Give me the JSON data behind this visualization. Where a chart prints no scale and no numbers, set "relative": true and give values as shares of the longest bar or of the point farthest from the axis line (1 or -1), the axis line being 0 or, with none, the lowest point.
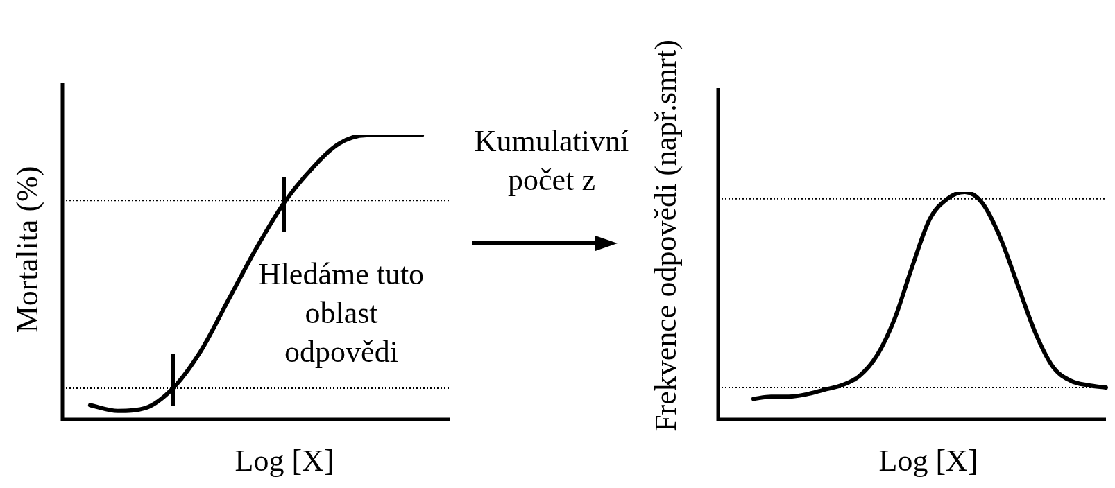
{
  "chart_data": [
    {
      "type": "line",
      "relative": true,
      "xlabel": "Log [X]",
      "ylabel": "Mortalita (%)",
      "color": "#000000",
      "categories": [
        null,
        null,
        null,
        null,
        null,
        null,
        null,
        null,
        null,
        null,
        null,
        null,
        null,
        null,
        null
      ],
      "values": [
        null,
        0.05,
        0.03,
        0.04,
        0.11,
        0.24,
        0.42,
        0.6,
        0.76,
        0.88,
        0.97,
        1,
        1,
        1,
        null
      ],
      "ref_lines": [
        {
          "axis": "y",
          "value": 0.11,
          "line_style": "dotted"
        },
        {
          "axis": "y",
          "value": 0.77,
          "line_style": "dotted"
        }
      ],
      "annotations": [
        "Kumulativní počet z",
        "Hledáme tuto oblast odpovědi"
      ]
    },
    {
      "type": "line",
      "relative": true,
      "xlabel": "Log [X]",
      "ylabel": "Frekvence odpovědi (např.smrt)",
      "color": "#000000",
      "categories": [
        null,
        null,
        null,
        null,
        null,
        null,
        null,
        null,
        null,
        null,
        null,
        null,
        null,
        null,
        null,
        null,
        null,
        null,
        null,
        null,
        null,
        null,
        null
      ],
      "values": [
        null,
        null,
        0.09,
        0.1,
        0.1,
        0.11,
        0.13,
        0.15,
        0.19,
        0.28,
        0.44,
        0.67,
        0.88,
        0.97,
        1,
        0.95,
        0.8,
        0.59,
        0.38,
        0.23,
        0.17,
        0.15,
        0.14
      ],
      "ref_lines": [
        {
          "axis": "y",
          "value": 0.14,
          "line_style": "dotted"
        },
        {
          "axis": "y",
          "value": 0.97,
          "line_style": "dotted"
        }
      ]
    }
  ]
}
